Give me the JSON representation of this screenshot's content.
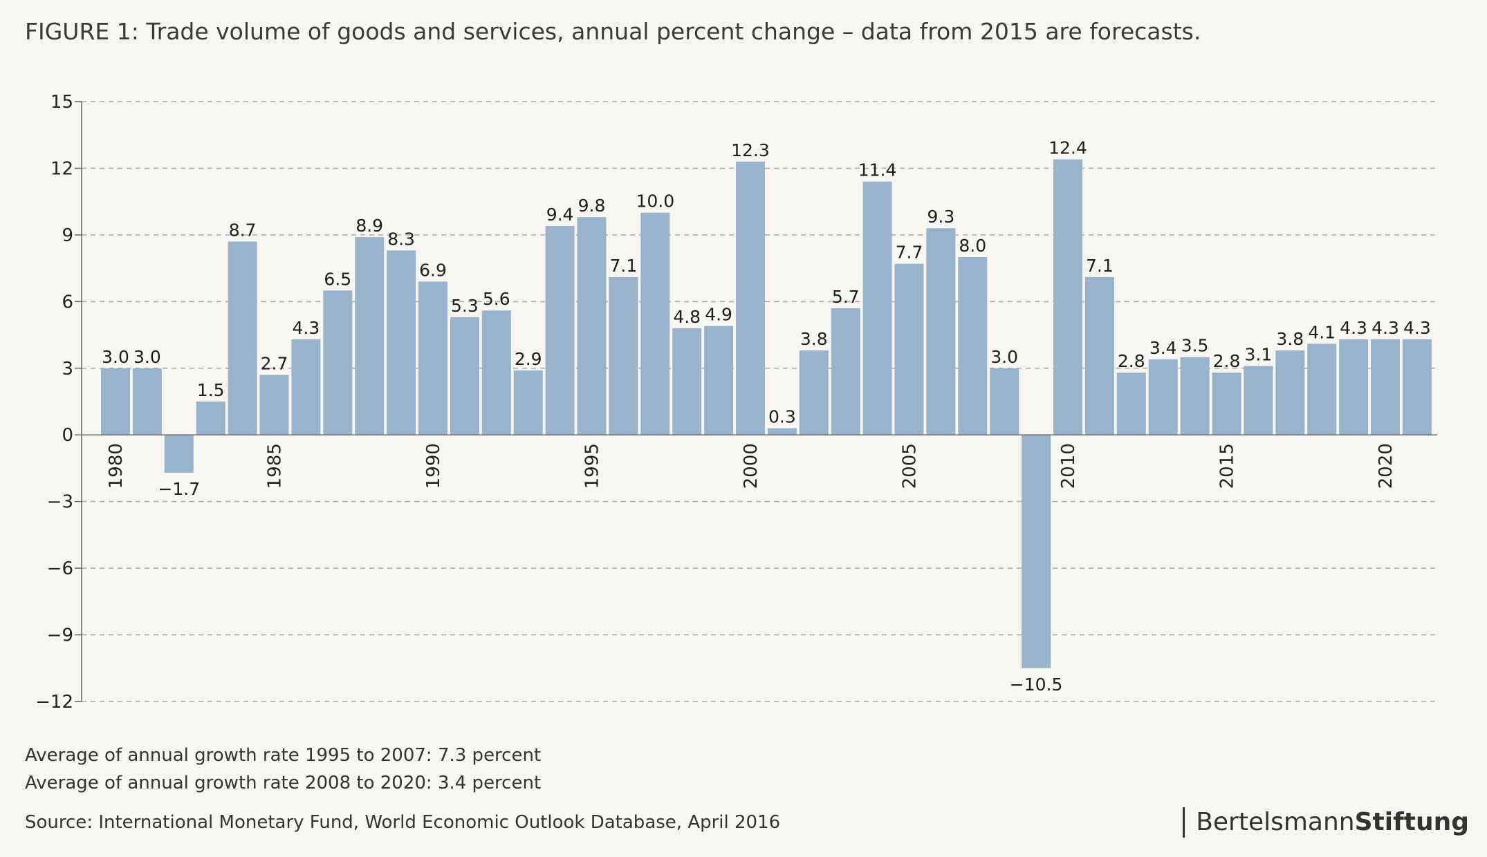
{
  "title": "FIGURE 1: Trade volume of goods and services, annual percent change – data from 2015 are forecasts.",
  "notes": {
    "avg1": "Average of annual growth rate 1995 to 2007: 7.3 percent",
    "avg2": "Average of annual growth rate 2008 to 2020: 3.4 percent",
    "source": "Source: International Monetary Fund, World Economic Outlook Database, April 2016"
  },
  "logo": {
    "part1": "Bertelsmann",
    "part2": "Stiftung"
  },
  "colors": {
    "bar": "#99b3cc",
    "grid": "#a9a9a9",
    "axis": "#666666"
  },
  "chart_data": {
    "type": "bar",
    "title": "FIGURE 1: Trade volume of goods and services, annual percent change – data from 2015 are forecasts.",
    "xlabel": "",
    "ylabel": "",
    "ylim": [
      -12,
      15
    ],
    "yticks": [
      15,
      12,
      9,
      6,
      3,
      0,
      -3,
      -6,
      -9,
      -12
    ],
    "ytick_labels": [
      "15",
      "12",
      "9",
      "6",
      "3",
      "0",
      "−3",
      "−6",
      "−9",
      "−12"
    ],
    "xtick_labels": [
      "1980",
      "1985",
      "1990",
      "1995",
      "2000",
      "2005",
      "2010",
      "2015",
      "2020"
    ],
    "grid": true,
    "categories": [
      1980,
      1981,
      1982,
      1983,
      1984,
      1985,
      1986,
      1987,
      1988,
      1989,
      1990,
      1991,
      1992,
      1993,
      1994,
      1995,
      1996,
      1997,
      1998,
      1999,
      2000,
      2001,
      2002,
      2003,
      2004,
      2005,
      2006,
      2007,
      2008,
      2009,
      2010,
      2011,
      2012,
      2013,
      2014,
      2015,
      2016,
      2017,
      2018,
      2019,
      2020,
      2021
    ],
    "values": [
      3.0,
      3.0,
      -1.7,
      1.5,
      8.7,
      2.7,
      4.3,
      6.5,
      8.9,
      8.3,
      6.9,
      5.3,
      5.6,
      2.9,
      9.4,
      9.8,
      7.1,
      10.0,
      4.8,
      4.9,
      12.3,
      0.3,
      3.8,
      5.7,
      11.4,
      7.7,
      9.3,
      8.0,
      3.0,
      -10.5,
      12.4,
      7.1,
      2.8,
      3.4,
      3.5,
      2.8,
      3.1,
      3.8,
      4.1,
      4.3,
      4.3,
      4.3
    ],
    "value_labels": [
      "3.0",
      "3.0",
      "−1.7",
      "1.5",
      "8.7",
      "2.7",
      "4.3",
      "6.5",
      "8.9",
      "8.3",
      "6.9",
      "5.3",
      "5.6",
      "2.9",
      "9.4",
      "9.8",
      "7.1",
      "10.0",
      "4.8",
      "4.9",
      "12.3",
      "0.3",
      "3.8",
      "5.7",
      "11.4",
      "7.7",
      "9.3",
      "8.0",
      "3.0",
      "−10.5",
      "12.4",
      "7.1",
      "2.8",
      "3.4",
      "3.5",
      "2.8",
      "3.1",
      "3.8",
      "4.1",
      "4.3",
      "4.3",
      "4.3"
    ]
  }
}
